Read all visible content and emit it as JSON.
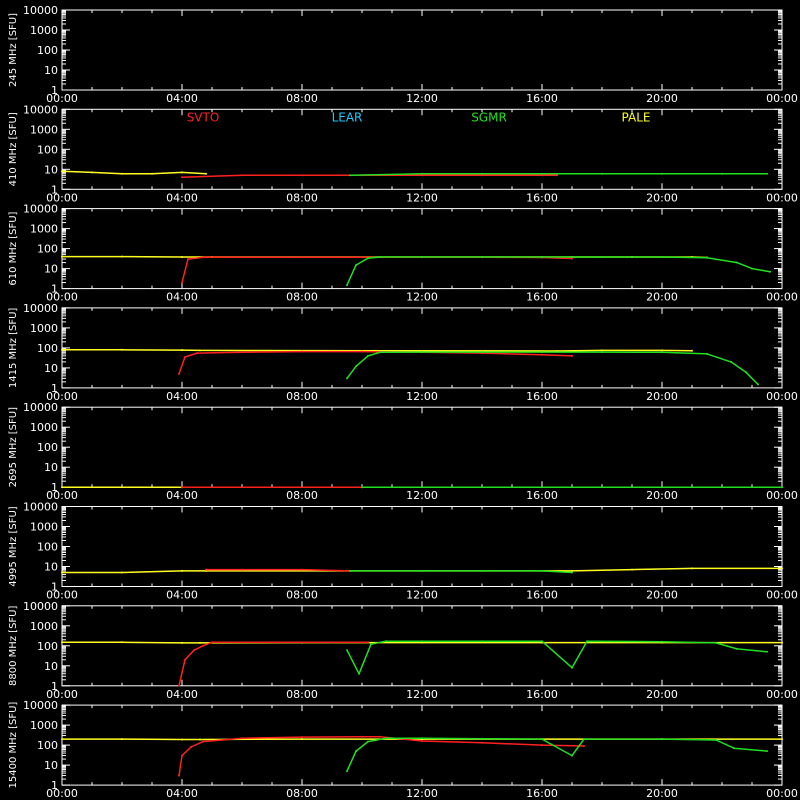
{
  "chart_data": {
    "type": "line",
    "y_unit": "[SFU]",
    "y_scale": "log",
    "ylim": [
      1,
      10000
    ],
    "y_ticks": [
      "1",
      "10",
      "100",
      "1000",
      "10000"
    ],
    "xlim": [
      "00:00",
      "24:00"
    ],
    "x_ticks": [
      "00:00",
      "04:00",
      "08:00",
      "12:00",
      "16:00",
      "20:00",
      "00:00"
    ],
    "legend": [
      {
        "name": "SVTO",
        "color": "#ff2020"
      },
      {
        "name": "LEAR",
        "color": "#20c8ff"
      },
      {
        "name": "SGMR",
        "color": "#20e020"
      },
      {
        "name": "PALE",
        "color": "#ffff20"
      }
    ],
    "colors": {
      "background": "#000000",
      "axes": "#ffffff"
    },
    "panels": [
      {
        "ylabel": "245 MHz",
        "series": []
      },
      {
        "ylabel": "410 MHz",
        "series": [
          {
            "station": "PALE",
            "points": [
              [
                0.0,
                8
              ],
              [
                1.0,
                7
              ],
              [
                2.0,
                6
              ],
              [
                3.0,
                6
              ],
              [
                4.0,
                7
              ],
              [
                4.8,
                6
              ]
            ]
          },
          {
            "station": "SVTO",
            "points": [
              [
                4.0,
                4
              ],
              [
                6.0,
                5
              ],
              [
                8.0,
                5
              ],
              [
                10.0,
                5
              ],
              [
                12.0,
                5
              ],
              [
                14.0,
                5
              ],
              [
                16.0,
                5
              ],
              [
                16.5,
                5
              ]
            ]
          },
          {
            "station": "SGMR",
            "points": [
              [
                9.6,
                5
              ],
              [
                12.0,
                6
              ],
              [
                14.0,
                6
              ],
              [
                16.0,
                6
              ],
              [
                18.0,
                6
              ],
              [
                20.0,
                6
              ],
              [
                22.0,
                6
              ],
              [
                23.5,
                6
              ]
            ]
          }
        ]
      },
      {
        "ylabel": "610 MHz",
        "series": [
          {
            "station": "PALE",
            "points": [
              [
                0.0,
                40
              ],
              [
                2.0,
                40
              ],
              [
                4.0,
                38
              ],
              [
                5.0,
                38
              ],
              [
                17.0,
                38
              ],
              [
                19.0,
                38
              ],
              [
                21.0,
                38
              ],
              [
                21.5,
                36
              ]
            ]
          },
          {
            "station": "SVTO",
            "points": [
              [
                4.0,
                2
              ],
              [
                4.2,
                30
              ],
              [
                4.8,
                38
              ],
              [
                6.0,
                37
              ],
              [
                8.0,
                37
              ],
              [
                10.0,
                37
              ],
              [
                12.0,
                37
              ],
              [
                14.0,
                37
              ],
              [
                16.0,
                36
              ],
              [
                17.0,
                32
              ]
            ]
          },
          {
            "station": "SGMR",
            "points": [
              [
                9.5,
                1.5
              ],
              [
                9.8,
                15
              ],
              [
                10.2,
                33
              ],
              [
                10.6,
                38
              ],
              [
                12.0,
                38
              ],
              [
                14.0,
                38
              ],
              [
                16.0,
                38
              ],
              [
                18.0,
                38
              ],
              [
                20.0,
                38
              ],
              [
                21.5,
                35
              ],
              [
                22.5,
                20
              ],
              [
                23.0,
                10
              ],
              [
                23.6,
                7
              ]
            ]
          }
        ]
      },
      {
        "ylabel": "1415 MHz",
        "series": [
          {
            "station": "PALE",
            "points": [
              [
                0.0,
                80
              ],
              [
                2.0,
                80
              ],
              [
                4.0,
                78
              ],
              [
                4.6,
                75
              ],
              [
                16.5,
                70
              ],
              [
                18.0,
                75
              ],
              [
                20.0,
                75
              ],
              [
                21.0,
                72
              ]
            ]
          },
          {
            "station": "SVTO",
            "points": [
              [
                3.9,
                5
              ],
              [
                4.1,
                35
              ],
              [
                4.5,
                55
              ],
              [
                6.0,
                60
              ],
              [
                8.0,
                65
              ],
              [
                10.0,
                65
              ],
              [
                12.0,
                60
              ],
              [
                14.0,
                55
              ],
              [
                16.0,
                45
              ],
              [
                17.0,
                40
              ]
            ]
          },
          {
            "station": "SGMR",
            "points": [
              [
                9.5,
                3
              ],
              [
                9.8,
                12
              ],
              [
                10.2,
                40
              ],
              [
                10.6,
                60
              ],
              [
                12.0,
                62
              ],
              [
                14.0,
                62
              ],
              [
                16.0,
                62
              ],
              [
                18.0,
                62
              ],
              [
                20.0,
                60
              ],
              [
                21.5,
                50
              ],
              [
                22.3,
                20
              ],
              [
                22.8,
                6
              ],
              [
                23.2,
                1.5
              ]
            ]
          }
        ]
      },
      {
        "ylabel": "2695 MHz",
        "series": [
          {
            "station": "PALE",
            "points": [
              [
                0.0,
                1
              ],
              [
                4.0,
                1
              ]
            ]
          },
          {
            "station": "SVTO",
            "points": [
              [
                4.0,
                1
              ],
              [
                10.0,
                1
              ]
            ]
          },
          {
            "station": "SGMR",
            "points": [
              [
                10.0,
                1
              ],
              [
                24.0,
                1
              ]
            ]
          }
        ]
      },
      {
        "ylabel": "4995 MHz",
        "series": [
          {
            "station": "PALE",
            "points": [
              [
                0.0,
                5
              ],
              [
                2.0,
                5
              ],
              [
                4.0,
                6
              ],
              [
                4.8,
                6
              ],
              [
                17.0,
                6
              ],
              [
                19.0,
                7
              ],
              [
                21.0,
                8
              ],
              [
                24.0,
                8
              ]
            ]
          },
          {
            "station": "SVTO",
            "points": [
              [
                4.8,
                7
              ],
              [
                6.0,
                7
              ],
              [
                8.0,
                7
              ],
              [
                9.6,
                6
              ]
            ]
          },
          {
            "station": "SGMR",
            "points": [
              [
                9.6,
                6
              ],
              [
                12.0,
                6
              ],
              [
                14.0,
                6
              ],
              [
                16.0,
                6
              ],
              [
                17.0,
                5
              ]
            ]
          }
        ]
      },
      {
        "ylabel": "8800 MHz",
        "series": [
          {
            "station": "PALE",
            "points": [
              [
                0.0,
                150
              ],
              [
                2.0,
                150
              ],
              [
                4.0,
                140
              ],
              [
                4.6,
                140
              ],
              [
                8.0,
                145
              ],
              [
                12.0,
                145
              ],
              [
                16.0,
                145
              ],
              [
                20.0,
                145
              ],
              [
                24.0,
                145
              ]
            ]
          },
          {
            "station": "SVTO",
            "points": [
              [
                3.9,
                1
              ],
              [
                4.1,
                20
              ],
              [
                4.4,
                60
              ],
              [
                4.7,
                100
              ],
              [
                5.0,
                150
              ],
              [
                7.0,
                150
              ],
              [
                9.0,
                150
              ],
              [
                10.2,
                150
              ]
            ]
          },
          {
            "station": "SGMR",
            "points": [
              [
                9.5,
                60
              ],
              [
                9.9,
                4
              ],
              [
                10.3,
                120
              ],
              [
                10.8,
                170
              ],
              [
                12.0,
                170
              ],
              [
                14.0,
                170
              ],
              [
                16.0,
                170
              ],
              [
                17.0,
                8
              ],
              [
                17.5,
                170
              ],
              [
                20.0,
                160
              ],
              [
                21.8,
                140
              ],
              [
                22.5,
                70
              ],
              [
                23.5,
                50
              ]
            ]
          }
        ]
      },
      {
        "ylabel": "15400 MHz",
        "series": [
          {
            "station": "PALE",
            "points": [
              [
                0.0,
                200
              ],
              [
                2.0,
                200
              ],
              [
                4.0,
                190
              ],
              [
                4.6,
                190
              ],
              [
                8.0,
                200
              ],
              [
                12.0,
                200
              ],
              [
                16.0,
                200
              ],
              [
                20.0,
                200
              ],
              [
                24.0,
                200
              ]
            ]
          },
          {
            "station": "SVTO",
            "points": [
              [
                3.9,
                3
              ],
              [
                4.0,
                30
              ],
              [
                4.3,
                80
              ],
              [
                4.7,
                150
              ],
              [
                6.0,
                220
              ],
              [
                8.0,
                250
              ],
              [
                10.0,
                260
              ],
              [
                10.6,
                260
              ],
              [
                12.0,
                160
              ],
              [
                14.0,
                130
              ],
              [
                16.0,
                100
              ],
              [
                17.4,
                90
              ]
            ]
          },
          {
            "station": "SGMR",
            "points": [
              [
                9.5,
                5
              ],
              [
                9.8,
                50
              ],
              [
                10.2,
                150
              ],
              [
                10.8,
                220
              ],
              [
                12.0,
                220
              ],
              [
                14.0,
                210
              ],
              [
                16.0,
                200
              ],
              [
                17.0,
                30
              ],
              [
                17.4,
                200
              ],
              [
                20.0,
                200
              ],
              [
                21.8,
                180
              ],
              [
                22.4,
                70
              ],
              [
                23.5,
                50
              ]
            ]
          }
        ]
      }
    ]
  }
}
